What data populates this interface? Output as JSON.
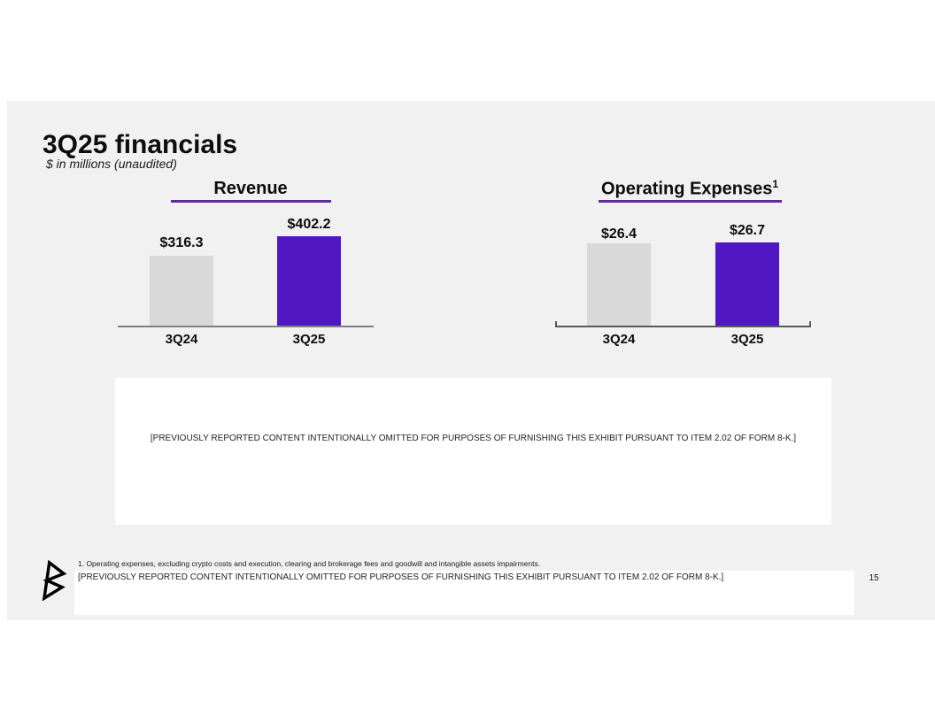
{
  "slide": {
    "title": "3Q25 financials",
    "subtitle": "$ in millions (unaudited)",
    "page_number": "15"
  },
  "chart_data": [
    {
      "type": "bar",
      "title": "Revenue",
      "units": "$ in millions (unaudited)",
      "categories": [
        "3Q24",
        "3Q25"
      ],
      "values": [
        316.3,
        402.2
      ],
      "data_labels": [
        "$316.3",
        "$402.2"
      ],
      "bar_colors": [
        "#d9d9d9",
        "#5117c2"
      ],
      "ylim": [
        0,
        420
      ],
      "grid": false,
      "legend": false
    },
    {
      "type": "bar",
      "title": "Operating Expenses",
      "title_superscript": "1",
      "units": "$ in millions (unaudited)",
      "categories": [
        "3Q24",
        "3Q25"
      ],
      "values": [
        26.4,
        26.7
      ],
      "data_labels": [
        "$26.4",
        "$26.7"
      ],
      "bar_colors": [
        "#d9d9d9",
        "#5117c2"
      ],
      "ylim": [
        0,
        28
      ],
      "grid": false,
      "legend": false
    }
  ],
  "notices": {
    "middle": "[PREVIOUSLY REPORTED CONTENT INTENTIONALLY OMITTED FOR PURPOSES OF FURNISHING THIS EXHIBIT PURSUANT TO ITEM 2.02 OF FORM 8-K.]",
    "bottom": "[PREVIOUSLY REPORTED CONTENT INTENTIONALLY OMITTED FOR PURPOSES OF FURNISHING THIS EXHIBIT PURSUANT TO ITEM 2.02 OF FORM 8-K.]"
  },
  "footnote": "1.  Operating expenses, excluding crypto costs and execution, clearing and brokerage fees and goodwill and intangible assets impairments.",
  "logo": {
    "name": "bakkt-b-logo"
  },
  "colors": {
    "slide_bg": "#f1f1f1",
    "bar_gray": "#d9d9d9",
    "bar_purple": "#5117c2",
    "underline_purple": "#5c2d9c",
    "revenue_axis": "#7f7f7f",
    "opex_axis": "#595959",
    "page_number": "#808080"
  }
}
